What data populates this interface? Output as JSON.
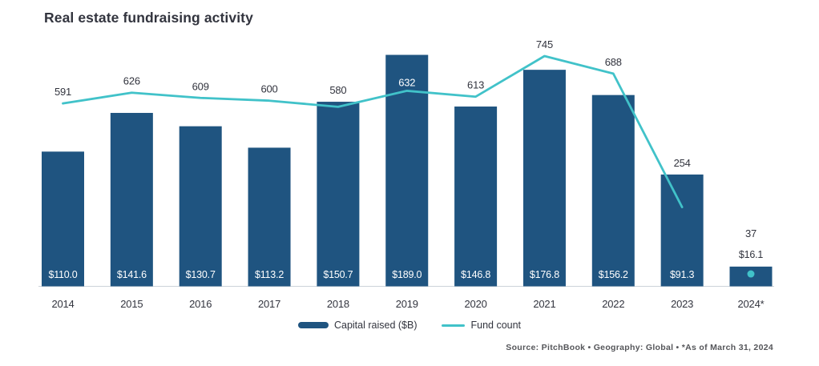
{
  "title": "Real estate fundraising activity",
  "legend": {
    "bar_label": "Capital raised ($B)",
    "line_label": "Fund count"
  },
  "source_note": "Source: PitchBook  •  Geography: Global  •  *As of March 31, 2024",
  "colors": {
    "bar": "#1f5480",
    "line": "#41c2c9",
    "text_dark": "#32343e",
    "bar_value_text": "#ffffff",
    "source_text": "#55565a",
    "axis_line": "#ccd3d9"
  },
  "chart_data": {
    "type": "bar+line",
    "categories": [
      "2014",
      "2015",
      "2016",
      "2017",
      "2018",
      "2019",
      "2020",
      "2021",
      "2022",
      "2023",
      "2024*"
    ],
    "series": [
      {
        "name": "Capital raised ($B)",
        "type": "bar",
        "values": [
          110.0,
          141.6,
          130.7,
          113.2,
          150.7,
          189.0,
          146.8,
          176.8,
          156.2,
          91.3,
          16.1
        ],
        "labels": [
          "$110.0",
          "$141.6",
          "$130.7",
          "$113.2",
          "$150.7",
          "$189.0",
          "$146.8",
          "$176.8",
          "$156.2",
          "$91.3",
          "$16.1"
        ]
      },
      {
        "name": "Fund count",
        "type": "line",
        "values": [
          591,
          626,
          609,
          600,
          580,
          632,
          613,
          745,
          688,
          254,
          37
        ]
      }
    ],
    "title": "Real estate fundraising activity",
    "xlabel": "",
    "ylabel": "",
    "value_axis_labels_visible": false,
    "data_labels": true,
    "grid": false,
    "legend_position": "bottom-center",
    "last_fund_count_marker": "isolated-dot"
  }
}
